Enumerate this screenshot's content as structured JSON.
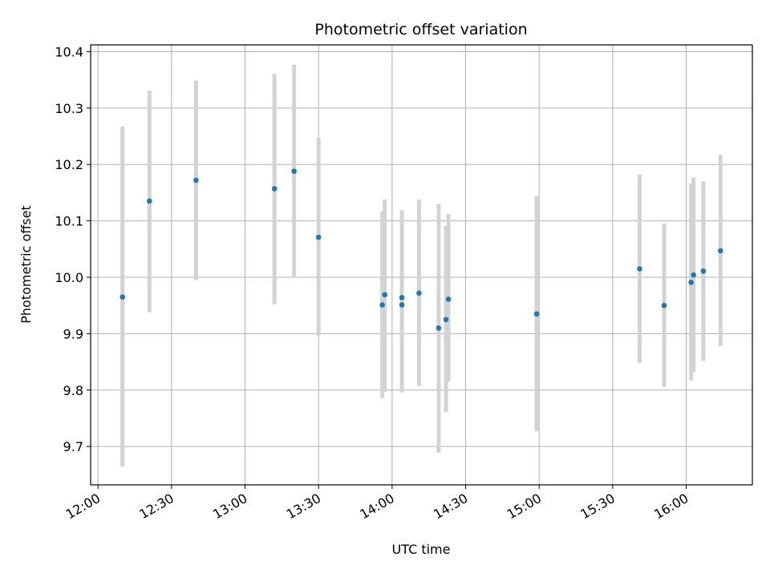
{
  "chart_data": {
    "type": "scatter",
    "title": "Photometric offset variation",
    "xlabel": "UTC time",
    "ylabel": "Photometric offset",
    "grid": true,
    "xlim": [
      "11:57",
      "16:27"
    ],
    "ylim": [
      9.632,
      10.412
    ],
    "x_ticks": [
      "12:00",
      "12:30",
      "13:00",
      "13:30",
      "14:00",
      "14:30",
      "15:00",
      "15:30",
      "16:00"
    ],
    "y_ticks": [
      9.7,
      9.8,
      9.9,
      10.0,
      10.1,
      10.2,
      10.3,
      10.4
    ],
    "y_tick_labels": [
      "9.7",
      "9.8",
      "9.9",
      "10.0",
      "10.1",
      "10.2",
      "10.3",
      "10.4"
    ],
    "colors": {
      "points": "#1f77b4",
      "errorbars": "#d3d3d3"
    },
    "series": [
      {
        "x": [
          "12:10",
          "12:21",
          "12:40",
          "13:12",
          "13:20",
          "13:30",
          "13:56",
          "13:57",
          "14:04",
          "14:04",
          "14:11",
          "14:19",
          "14:22",
          "14:23",
          "14:59",
          "15:41",
          "15:51",
          "16:02",
          "16:03",
          "16:07",
          "16:14"
        ],
        "y": [
          9.965,
          10.135,
          10.172,
          10.157,
          10.188,
          10.071,
          9.951,
          9.969,
          9.951,
          9.964,
          9.972,
          9.91,
          9.925,
          9.961,
          9.935,
          10.015,
          9.95,
          9.991,
          10.004,
          10.011,
          10.047
        ],
        "y_low": [
          9.665,
          9.938,
          9.995,
          9.952,
          10.0,
          9.897,
          9.786,
          9.797,
          9.796,
          9.796,
          9.807,
          9.689,
          9.761,
          9.815,
          9.727,
          9.848,
          9.805,
          9.817,
          9.832,
          9.852,
          9.878
        ],
        "y_high": [
          10.267,
          10.331,
          10.349,
          10.361,
          10.377,
          10.247,
          10.117,
          10.138,
          10.108,
          10.119,
          10.138,
          10.13,
          10.091,
          10.112,
          10.144,
          10.182,
          10.095,
          10.166,
          10.177,
          10.17,
          10.217
        ]
      }
    ]
  }
}
